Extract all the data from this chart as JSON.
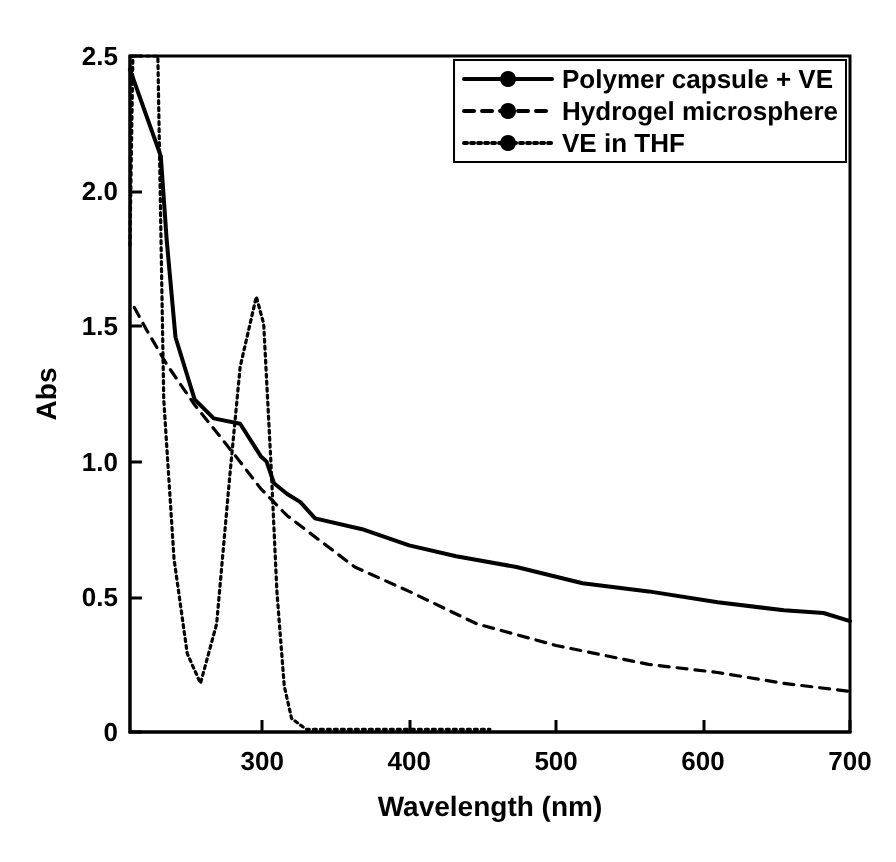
{
  "chart_data": {
    "type": "line",
    "xlabel": "Wavelength (nm)",
    "ylabel": "Abs",
    "xlim": [
      210,
      700
    ],
    "ylim": [
      0,
      2.5
    ],
    "xticks": [
      300,
      400,
      500,
      600,
      700
    ],
    "yticks": [
      0,
      0.5,
      {
        "value": 1,
        "label": "1.0"
      },
      1.5,
      {
        "value": 2,
        "label": "2.0"
      },
      2.5
    ],
    "grid": false,
    "legend": "top right",
    "marker": "none",
    "series": [
      {
        "name": "Polymer capsule + VE",
        "color": "#000000",
        "line_style": "solid",
        "x": [
          210,
          231,
          235,
          241,
          254,
          267,
          285,
          299,
          303,
          308,
          317,
          326,
          336,
          368,
          400,
          432,
          473,
          518,
          563,
          610,
          655,
          682,
          700
        ],
        "values": [
          2.45,
          2.13,
          1.82,
          1.46,
          1.23,
          1.16,
          1.14,
          1.02,
          1.0,
          0.92,
          0.88,
          0.85,
          0.79,
          0.75,
          0.69,
          0.65,
          0.61,
          0.55,
          0.52,
          0.48,
          0.45,
          0.44,
          0.41
        ]
      },
      {
        "name": "Hydrogel microsphere",
        "color": "#000000",
        "line_style": "dashed",
        "x": [
          213,
          221,
          235,
          254,
          282,
          299,
          317,
          363,
          400,
          446,
          500,
          563,
          610,
          655,
          700
        ],
        "values": [
          1.57,
          1.49,
          1.36,
          1.21,
          1.02,
          0.9,
          0.8,
          0.61,
          0.52,
          0.4,
          0.32,
          0.25,
          0.22,
          0.18,
          0.15
        ]
      },
      {
        "name": "VE in THF",
        "color": "#000000",
        "line_style": "dotted",
        "x": [
          210,
          212,
          229,
          233,
          240,
          249,
          258,
          269,
          278,
          285,
          296,
          301,
          306,
          310,
          315,
          320,
          330,
          455
        ],
        "values": [
          1.8,
          2.5,
          2.5,
          1.23,
          0.64,
          0.29,
          0.18,
          0.4,
          0.95,
          1.35,
          1.61,
          1.51,
          0.99,
          0.52,
          0.17,
          0.05,
          0.01,
          0.01
        ]
      }
    ]
  }
}
